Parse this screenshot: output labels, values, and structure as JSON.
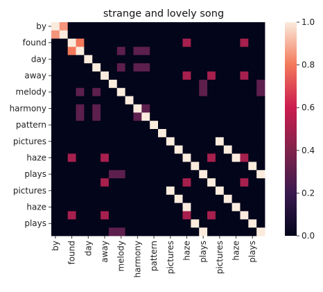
{
  "chart_data": {
    "type": "heatmap",
    "title": "strange and lovely song",
    "row_labels": [
      "by",
      "found",
      "day",
      "away",
      "melody",
      "harmony",
      "pattern",
      "pictures",
      "haze",
      "plays",
      "pictures",
      "haze",
      "plays"
    ],
    "col_labels": [
      "by",
      "found",
      "day",
      "away",
      "melody",
      "harmony",
      "pattern",
      "pictures",
      "haze",
      "plays",
      "pictures",
      "haze",
      "plays"
    ],
    "tokens_per_row": 2,
    "values": [
      [
        1,
        0.85,
        0,
        0,
        0,
        0,
        0,
        0,
        0,
        0,
        0,
        0,
        0,
        0,
        0,
        0,
        0,
        0,
        0,
        0,
        0,
        0,
        0,
        0,
        0,
        0
      ],
      [
        0.85,
        1,
        0,
        0,
        0,
        0,
        0,
        0,
        0,
        0,
        0,
        0,
        0,
        0,
        0,
        0,
        0,
        0,
        0,
        0,
        0,
        0,
        0,
        0,
        0,
        0
      ],
      [
        0,
        0,
        1,
        0.8,
        0,
        0,
        0,
        0,
        0,
        0,
        0,
        0,
        0,
        0,
        0,
        0,
        0,
        0,
        0,
        0,
        0,
        0,
        0,
        0,
        0,
        0
      ],
      [
        0,
        0,
        0.8,
        1,
        0,
        0,
        0,
        0,
        0,
        0,
        0,
        0,
        0,
        0,
        0,
        0,
        0,
        0,
        0,
        0,
        0,
        0,
        0,
        0,
        0,
        0
      ],
      [
        0,
        0,
        0,
        0,
        1,
        0,
        0,
        0,
        0,
        0,
        0,
        0,
        0,
        0,
        0,
        0,
        0,
        0,
        0,
        0,
        0,
        0,
        0,
        0,
        0,
        0
      ],
      [
        0,
        0,
        0,
        0,
        0,
        1,
        0,
        0,
        0,
        0,
        0,
        0,
        0,
        0,
        0,
        0,
        0,
        0,
        0,
        0,
        0,
        0,
        0,
        0,
        0,
        0
      ],
      [
        0,
        0,
        0,
        0,
        0,
        0,
        1,
        0,
        0,
        0,
        0,
        0,
        0,
        0,
        0,
        0,
        0,
        0,
        0,
        0,
        0,
        0,
        0,
        0,
        0,
        0
      ],
      [
        0,
        0,
        0,
        0,
        0,
        0,
        0,
        1,
        0,
        0,
        0,
        0,
        0,
        0,
        0,
        0,
        0,
        0,
        0,
        0,
        0,
        0,
        0,
        0,
        0,
        0
      ],
      [
        0,
        0,
        0,
        0,
        0,
        0,
        0,
        0,
        1,
        0,
        0,
        0,
        0,
        0,
        0,
        0,
        0,
        0,
        0,
        0,
        0,
        0,
        0,
        0,
        0,
        0
      ],
      [
        0,
        0,
        0,
        0,
        0,
        0,
        0,
        0,
        0,
        1,
        0,
        0,
        0,
        0,
        0,
        0,
        0,
        0,
        0,
        0,
        0,
        0,
        0,
        0,
        0,
        0
      ],
      [
        0,
        0,
        0,
        0,
        0,
        0,
        0,
        0,
        0,
        0,
        1,
        0,
        0,
        0,
        0,
        0,
        0,
        0,
        0,
        0,
        0,
        0,
        0,
        0,
        0,
        0
      ],
      [
        0,
        0,
        0,
        0,
        0,
        0,
        0,
        0,
        0,
        0,
        0,
        1,
        0,
        0,
        0,
        0,
        0,
        0,
        0,
        0,
        0,
        0,
        0,
        0,
        0,
        0
      ],
      [
        0,
        0,
        0,
        0,
        0,
        0,
        0,
        0,
        0,
        0,
        0,
        0,
        1,
        0,
        0,
        0,
        0,
        0,
        0,
        0,
        0,
        0,
        0,
        0,
        0,
        0
      ],
      [
        0,
        0,
        0,
        0,
        0,
        0,
        0,
        0,
        0,
        0,
        0,
        0,
        0,
        1,
        0,
        0,
        0,
        0,
        0,
        0,
        0,
        0,
        0,
        0,
        0,
        0
      ],
      [
        0,
        0,
        0,
        0,
        0,
        0,
        0,
        0,
        0,
        0,
        0,
        0,
        0,
        0,
        1,
        0,
        0,
        0,
        0,
        0,
        0,
        0,
        0,
        0,
        0,
        0
      ],
      [
        0,
        0,
        0,
        0,
        0,
        0,
        0,
        0,
        0,
        0,
        0,
        0,
        0,
        0,
        0,
        1,
        0,
        0,
        0,
        0,
        0,
        0,
        0,
        0,
        0,
        0
      ],
      [
        0,
        0,
        0,
        0,
        0,
        0,
        0,
        0,
        0,
        0,
        0,
        0,
        0,
        0,
        0,
        0,
        1,
        0,
        0,
        0,
        0,
        0,
        0,
        0,
        0,
        0
      ],
      [
        0,
        0,
        0,
        0,
        0,
        0,
        0,
        0,
        0,
        0,
        0,
        0,
        0,
        0,
        0,
        0,
        0,
        1,
        0,
        0,
        0,
        0,
        0,
        0,
        0,
        0
      ],
      [
        0,
        0,
        0,
        0,
        0,
        0,
        0,
        0,
        0,
        0,
        0,
        0,
        0,
        0,
        0,
        0,
        0,
        0,
        1,
        0,
        0,
        0,
        0,
        0,
        0,
        0
      ],
      [
        0,
        0,
        0,
        0,
        0,
        0,
        0,
        0,
        0,
        0,
        0,
        0,
        0,
        0,
        0,
        0,
        0,
        0,
        0,
        1,
        0,
        0,
        0,
        0,
        0,
        0
      ],
      [
        0,
        0,
        0,
        0,
        0,
        0,
        0,
        0,
        0,
        0,
        0,
        0,
        0,
        0,
        0,
        0,
        0,
        0,
        0,
        0,
        1,
        0,
        0,
        0,
        0,
        0
      ],
      [
        0,
        0,
        0,
        0,
        0,
        0,
        0,
        0,
        0,
        0,
        0,
        0,
        0,
        0,
        0,
        0,
        0,
        0,
        0,
        0,
        0,
        1,
        0,
        0,
        0,
        0
      ],
      [
        0,
        0,
        0,
        0,
        0,
        0,
        0,
        0,
        0,
        0,
        0,
        0,
        0,
        0,
        0,
        0,
        0,
        0,
        0,
        0,
        0,
        0,
        1,
        0,
        0,
        0
      ],
      [
        0,
        0,
        0,
        0,
        0,
        0,
        0,
        0,
        0,
        0,
        0,
        0,
        0,
        0,
        0,
        0,
        0,
        0,
        0,
        0,
        0,
        0,
        0,
        1,
        0,
        0
      ],
      [
        0,
        0,
        0,
        0,
        0,
        0,
        0,
        0,
        0,
        0,
        0,
        0,
        0,
        0,
        0,
        0,
        0,
        0,
        0,
        0,
        0,
        0,
        0,
        0,
        1,
        0
      ],
      [
        0,
        0,
        0,
        0,
        0,
        0,
        0,
        0,
        0,
        0,
        0,
        0,
        0,
        0,
        0,
        0,
        0,
        0,
        0,
        0,
        0,
        0,
        0,
        0,
        0,
        1
      ]
    ],
    "extra_cells": [
      [
        2,
        16,
        0.5
      ],
      [
        2,
        23,
        0.5
      ],
      [
        16,
        2,
        0.5
      ],
      [
        23,
        2,
        0.5
      ],
      [
        3,
        8,
        0.3
      ],
      [
        8,
        3,
        0.3
      ],
      [
        5,
        8,
        0.3
      ],
      [
        8,
        5,
        0.3
      ],
      [
        3,
        10,
        0.3
      ],
      [
        10,
        3,
        0.3
      ],
      [
        3,
        11,
        0.3
      ],
      [
        11,
        3,
        0.3
      ],
      [
        5,
        10,
        0.3
      ],
      [
        10,
        5,
        0.3
      ],
      [
        5,
        11,
        0.3
      ],
      [
        11,
        5,
        0.3
      ],
      [
        10,
        11,
        0.3
      ],
      [
        11,
        10,
        0.3
      ],
      [
        6,
        16,
        0.5
      ],
      [
        16,
        6,
        0.5
      ],
      [
        6,
        19,
        0.5
      ],
      [
        19,
        6,
        0.5
      ],
      [
        6,
        23,
        0.5
      ],
      [
        23,
        6,
        0.5
      ],
      [
        7,
        18,
        0.3
      ],
      [
        18,
        7,
        0.3
      ],
      [
        7,
        25,
        0.3
      ],
      [
        25,
        7,
        0.3
      ],
      [
        16,
        19,
        0.5
      ],
      [
        19,
        16,
        0.5
      ],
      [
        16,
        23,
        0.5
      ],
      [
        23,
        16,
        0.5
      ],
      [
        19,
        23,
        0.5
      ],
      [
        23,
        19,
        0.5
      ],
      [
        8,
        18,
        0.3
      ],
      [
        18,
        8,
        0.3
      ],
      [
        8,
        25,
        0.3
      ],
      [
        25,
        8,
        0.3
      ],
      [
        18,
        25,
        1.0
      ],
      [
        25,
        18,
        1.0
      ],
      [
        17,
        24,
        1.0
      ],
      [
        24,
        17,
        1.0
      ],
      [
        15,
        21,
        1.0
      ],
      [
        21,
        15,
        1.0
      ],
      [
        16,
        22,
        1.0
      ],
      [
        22,
        16,
        1.0
      ],
      [
        14,
        20,
        1.0
      ],
      [
        20,
        14,
        1.0
      ]
    ],
    "colorbar": {
      "min": 0.0,
      "max": 1.0,
      "ticks": [
        "0.0",
        "0.2",
        "0.4",
        "0.6",
        "0.8",
        "1.0"
      ]
    },
    "colormap": "rocket"
  }
}
